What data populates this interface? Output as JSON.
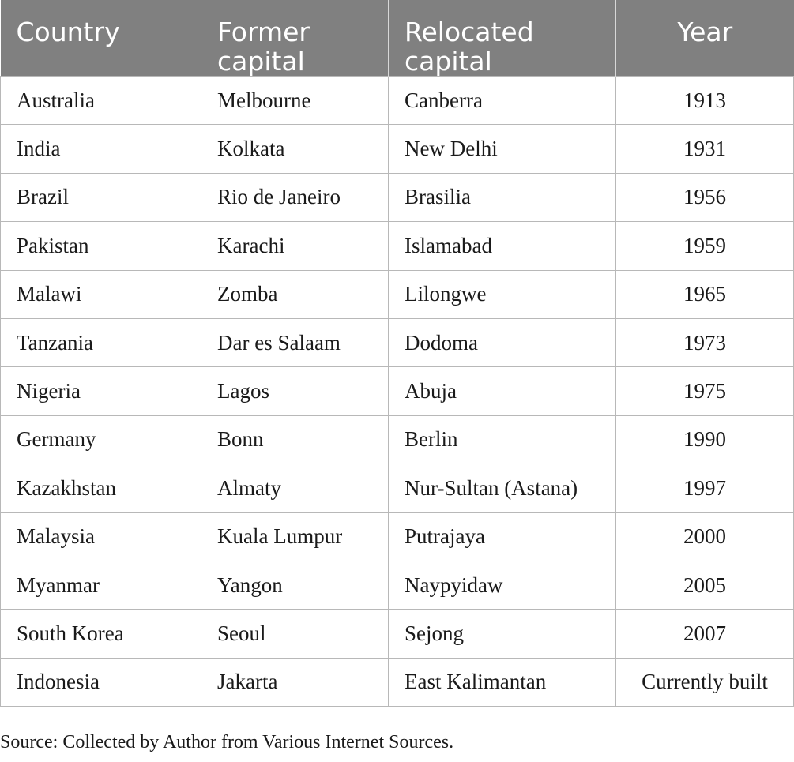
{
  "table": {
    "headers": [
      "Country",
      "Former capital",
      "Relocated capital",
      "Year"
    ],
    "rows": [
      [
        "Australia",
        "Melbourne",
        "Canberra",
        "1913"
      ],
      [
        "India",
        "Kolkata",
        "New Delhi",
        "1931"
      ],
      [
        "Brazil",
        "Rio de Janeiro",
        "Brasilia",
        "1956"
      ],
      [
        "Pakistan",
        "Karachi",
        "Islamabad",
        "1959"
      ],
      [
        "Malawi",
        "Zomba",
        "Lilongwe",
        "1965"
      ],
      [
        "Tanzania",
        "Dar es Salaam",
        "Dodoma",
        "1973"
      ],
      [
        "Nigeria",
        "Lagos",
        "Abuja",
        "1975"
      ],
      [
        "Germany",
        "Bonn",
        "Berlin",
        "1990"
      ],
      [
        "Kazakhstan",
        "Almaty",
        "Nur-Sultan (Astana)",
        "1997"
      ],
      [
        "Malaysia",
        "Kuala Lumpur",
        "Putrajaya",
        "2000"
      ],
      [
        "Myanmar",
        "Yangon",
        "Naypyidaw",
        "2005"
      ],
      [
        "South Korea",
        "Seoul",
        "Sejong",
        "2007"
      ],
      [
        "Indonesia",
        "Jakarta",
        "East Kalimantan",
        "Currently built"
      ]
    ]
  },
  "source_note": "Source: Collected by Author from Various Internet Sources.",
  "colors": {
    "header_background": "#808080",
    "header_text": "#ffffff",
    "grid_lines": "#b8b8b8"
  }
}
